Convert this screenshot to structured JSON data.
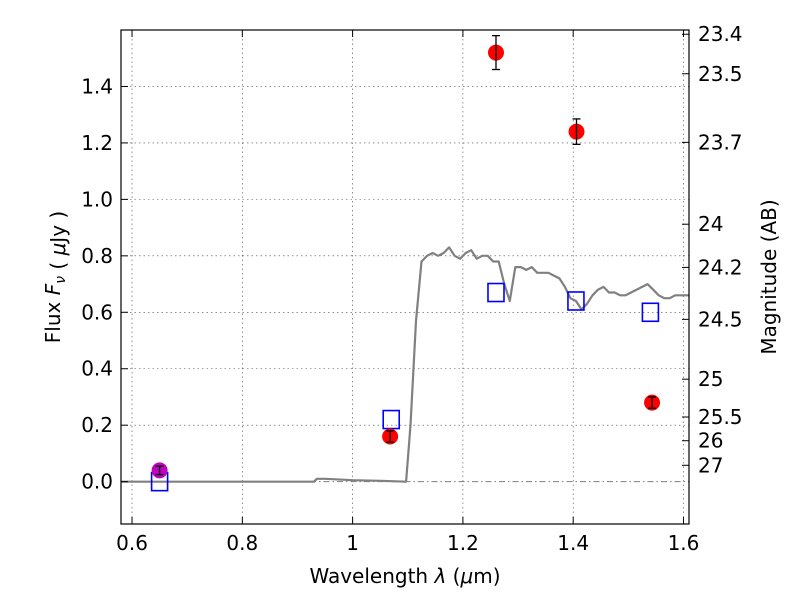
{
  "chart_data": {
    "type": "scatter",
    "xlabel": "Wavelength  λ (μm)",
    "ylabel": "Flux  F_ν  ( μJy )",
    "ylabel_right": "Magnitude (AB)",
    "xlim": [
      0.58,
      1.61
    ],
    "ylim": [
      -0.15,
      1.6
    ],
    "grid": true,
    "x_ticks": [
      {
        "value": 0.6,
        "label": "0.6"
      },
      {
        "value": 0.8,
        "label": "0.8"
      },
      {
        "value": 1.0,
        "label": "1"
      },
      {
        "value": 1.2,
        "label": "1.2"
      },
      {
        "value": 1.4,
        "label": "1.4"
      },
      {
        "value": 1.6,
        "label": "1.6"
      }
    ],
    "y_ticks": [
      {
        "value": 0.0,
        "label": "0.0"
      },
      {
        "value": 0.2,
        "label": "0.2"
      },
      {
        "value": 0.4,
        "label": "0.4"
      },
      {
        "value": 0.6,
        "label": "0.6"
      },
      {
        "value": 0.8,
        "label": "0.8"
      },
      {
        "value": 1.0,
        "label": "1.0"
      },
      {
        "value": 1.2,
        "label": "1.2"
      },
      {
        "value": 1.4,
        "label": "1.4"
      }
    ],
    "magnitude_ticks": [
      {
        "flux": 1.585,
        "label": "23.4"
      },
      {
        "flux": 1.445,
        "label": "23.5"
      },
      {
        "flux": 1.202,
        "label": "23.7"
      },
      {
        "flux": 0.912,
        "label": "24"
      },
      {
        "flux": 0.759,
        "label": "24.2"
      },
      {
        "flux": 0.575,
        "label": "24.5"
      },
      {
        "flux": 0.363,
        "label": "25"
      },
      {
        "flux": 0.229,
        "label": "25.5"
      },
      {
        "flux": 0.145,
        "label": "26"
      },
      {
        "flux": 0.058,
        "label": "27"
      }
    ],
    "series": [
      {
        "kind": "line",
        "color": "#808080",
        "x": [
          0.58,
          0.93,
          0.935,
          0.95,
          1.0,
          1.05,
          1.097,
          1.105,
          1.115,
          1.125,
          1.135,
          1.145,
          1.155,
          1.165,
          1.175,
          1.185,
          1.195,
          1.205,
          1.215,
          1.225,
          1.235,
          1.245,
          1.255,
          1.265,
          1.275,
          1.285,
          1.295,
          1.305,
          1.315,
          1.325,
          1.335,
          1.345,
          1.355,
          1.365,
          1.375,
          1.385,
          1.395,
          1.405,
          1.415,
          1.425,
          1.435,
          1.445,
          1.455,
          1.465,
          1.475,
          1.485,
          1.495,
          1.505,
          1.515,
          1.525,
          1.535,
          1.545,
          1.555,
          1.565,
          1.575,
          1.585,
          1.595,
          1.61
        ],
        "y": [
          0.0,
          0.0,
          0.01,
          0.01,
          0.005,
          0.003,
          0.0,
          0.2,
          0.57,
          0.78,
          0.8,
          0.81,
          0.8,
          0.81,
          0.83,
          0.8,
          0.79,
          0.81,
          0.82,
          0.79,
          0.8,
          0.8,
          0.78,
          0.78,
          0.7,
          0.64,
          0.76,
          0.76,
          0.75,
          0.76,
          0.74,
          0.74,
          0.74,
          0.73,
          0.72,
          0.69,
          0.65,
          0.64,
          0.61,
          0.63,
          0.66,
          0.68,
          0.69,
          0.67,
          0.67,
          0.66,
          0.66,
          0.67,
          0.68,
          0.69,
          0.7,
          0.68,
          0.66,
          0.65,
          0.65,
          0.66,
          0.66,
          0.66
        ]
      },
      {
        "kind": "dash-dot-line",
        "color": "#808080",
        "x": [
          0.58,
          1.61
        ],
        "y": [
          0.0,
          0.0
        ]
      },
      {
        "kind": "squares",
        "color": "#0000ff",
        "x": [
          0.65,
          1.07,
          1.26,
          1.405,
          1.54
        ],
        "y": [
          0.0,
          0.22,
          0.67,
          0.64,
          0.6
        ]
      },
      {
        "kind": "points-errorbars",
        "color": "#ff0000",
        "x": [
          1.068,
          1.26,
          1.406,
          1.543
        ],
        "y": [
          0.16,
          1.52,
          1.24,
          0.28
        ],
        "err": [
          0.02,
          0.06,
          0.045,
          0.02
        ]
      },
      {
        "kind": "points-errorbars",
        "color": "#bf00bf",
        "x": [
          0.65
        ],
        "y": [
          0.04
        ],
        "err": [
          0.015
        ]
      }
    ]
  }
}
